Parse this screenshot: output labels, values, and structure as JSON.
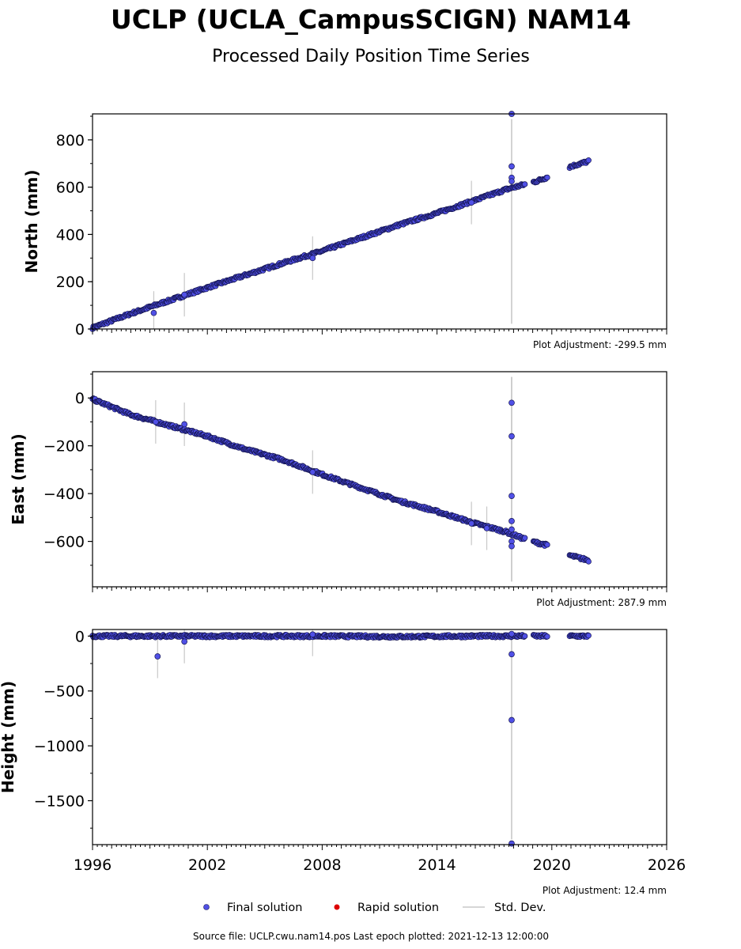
{
  "title": "UCLP (UCLA_CampusSCIGN) NAM14",
  "subtitle": "Processed Daily Position Time Series",
  "footer": "Source file: UCLP.cwu.nam14.pos  Last epoch plotted: 2021-12-13 12:00:00",
  "legend": {
    "final": "Final solution",
    "rapid": "Rapid solution",
    "std": "Std. Dev."
  },
  "colors": {
    "final_fill": "#5050e6",
    "final_edge": "#141450",
    "rapid": "#dd0000",
    "stddev": "#c8c8c8",
    "axis": "#000000"
  },
  "chart_data": [
    {
      "type": "scatter",
      "ylabel": "North (mm)",
      "adjustment": "Plot Adjustment: -299.5 mm",
      "xlim": [
        1996,
        2026
      ],
      "ylim": [
        0,
        910
      ],
      "yticks": [
        0,
        200,
        400,
        600,
        800
      ],
      "ytick_labels": [
        "0",
        "200",
        "400",
        "600",
        "800"
      ],
      "series": [
        {
          "values": [
            [
              1996.0,
              5
            ],
            [
              1998.0,
              65
            ],
            [
              2000.0,
              120
            ],
            [
              2002.0,
              175
            ],
            [
              2004.0,
              228
            ],
            [
              2006.0,
              280
            ],
            [
              2008.0,
              330
            ],
            [
              2010.0,
              385
            ],
            [
              2012.0,
              440
            ],
            [
              2014.0,
              490
            ],
            [
              2016.0,
              545
            ],
            [
              2017.6,
              590
            ],
            [
              2019.2,
              625
            ],
            [
              2019.7,
              640
            ],
            [
              2021.0,
              688
            ],
            [
              2021.95,
              710
            ]
          ],
          "outliers": [
            [
              2017.9,
              910
            ],
            [
              2017.9,
              688
            ],
            [
              2017.9,
              640
            ],
            [
              2017.9,
              625
            ],
            [
              1999.2,
              68
            ],
            [
              2000.8,
              145
            ],
            [
              2007.5,
              300
            ],
            [
              2015.8,
              535
            ]
          ],
          "gaps": [
            [
              2018.6,
              2019.0
            ],
            [
              2019.8,
              2020.9
            ]
          ]
        }
      ]
    },
    {
      "type": "scatter",
      "ylabel": "East (mm)",
      "adjustment": "Plot Adjustment: 287.9 mm",
      "xlim": [
        1996,
        2026
      ],
      "ylim": [
        -790,
        110
      ],
      "yticks": [
        -600,
        -400,
        -200,
        0
      ],
      "ytick_labels": [
        "−600",
        "−400",
        "−200",
        "0"
      ],
      "series": [
        {
          "values": [
            [
              1996.0,
              -5
            ],
            [
              1998.0,
              -70
            ],
            [
              2000.0,
              -115
            ],
            [
              2002.0,
              -160
            ],
            [
              2004.0,
              -215
            ],
            [
              2006.0,
              -260
            ],
            [
              2008.0,
              -320
            ],
            [
              2010.0,
              -375
            ],
            [
              2012.0,
              -430
            ],
            [
              2014.0,
              -475
            ],
            [
              2016.0,
              -525
            ],
            [
              2017.6,
              -560
            ],
            [
              2018.4,
              -585
            ],
            [
              2019.2,
              -605
            ],
            [
              2019.7,
              -615
            ],
            [
              2021.0,
              -660
            ],
            [
              2021.95,
              -680
            ]
          ],
          "outliers": [
            [
              2017.9,
              -20
            ],
            [
              2017.9,
              -160
            ],
            [
              2017.9,
              -410
            ],
            [
              2017.9,
              -515
            ],
            [
              2017.9,
              -550
            ],
            [
              2017.9,
              -600
            ],
            [
              2017.9,
              -620
            ],
            [
              1999.3,
              -100
            ],
            [
              2000.8,
              -110
            ],
            [
              2007.5,
              -310
            ],
            [
              2015.8,
              -525
            ],
            [
              2016.6,
              -545
            ]
          ],
          "gaps": [
            [
              2018.6,
              2019.0
            ],
            [
              2019.8,
              2020.9
            ]
          ]
        }
      ]
    },
    {
      "type": "scatter",
      "ylabel": "Height (mm)",
      "adjustment": "Plot Adjustment: 12.4 mm",
      "xlim": [
        1996,
        2026
      ],
      "xticks": [
        1996,
        2002,
        2008,
        2014,
        2020,
        2026
      ],
      "xtick_labels": [
        "1996",
        "2002",
        "2008",
        "2014",
        "2020",
        "2026"
      ],
      "ylim": [
        -1900,
        60
      ],
      "yticks": [
        -1500,
        -1000,
        -500,
        0
      ],
      "ytick_labels": [
        "−1500",
        "−1000",
        "−500",
        "0"
      ],
      "series": [
        {
          "values": [
            [
              1996.0,
              0
            ],
            [
              2000.0,
              0
            ],
            [
              2004.0,
              0
            ],
            [
              2008.0,
              0
            ],
            [
              2012.0,
              -5
            ],
            [
              2016.0,
              0
            ],
            [
              2018.4,
              0
            ],
            [
              2019.7,
              0
            ],
            [
              2021.0,
              0
            ],
            [
              2021.95,
              0
            ]
          ],
          "outliers": [
            [
              1999.4,
              -185
            ],
            [
              2000.8,
              -50
            ],
            [
              2017.9,
              20
            ],
            [
              2017.9,
              -165
            ],
            [
              2017.9,
              -765
            ],
            [
              2017.9,
              -1890
            ],
            [
              2007.5,
              15
            ]
          ],
          "gaps": [
            [
              2018.6,
              2019.0
            ],
            [
              2019.8,
              2020.9
            ]
          ]
        }
      ]
    }
  ]
}
